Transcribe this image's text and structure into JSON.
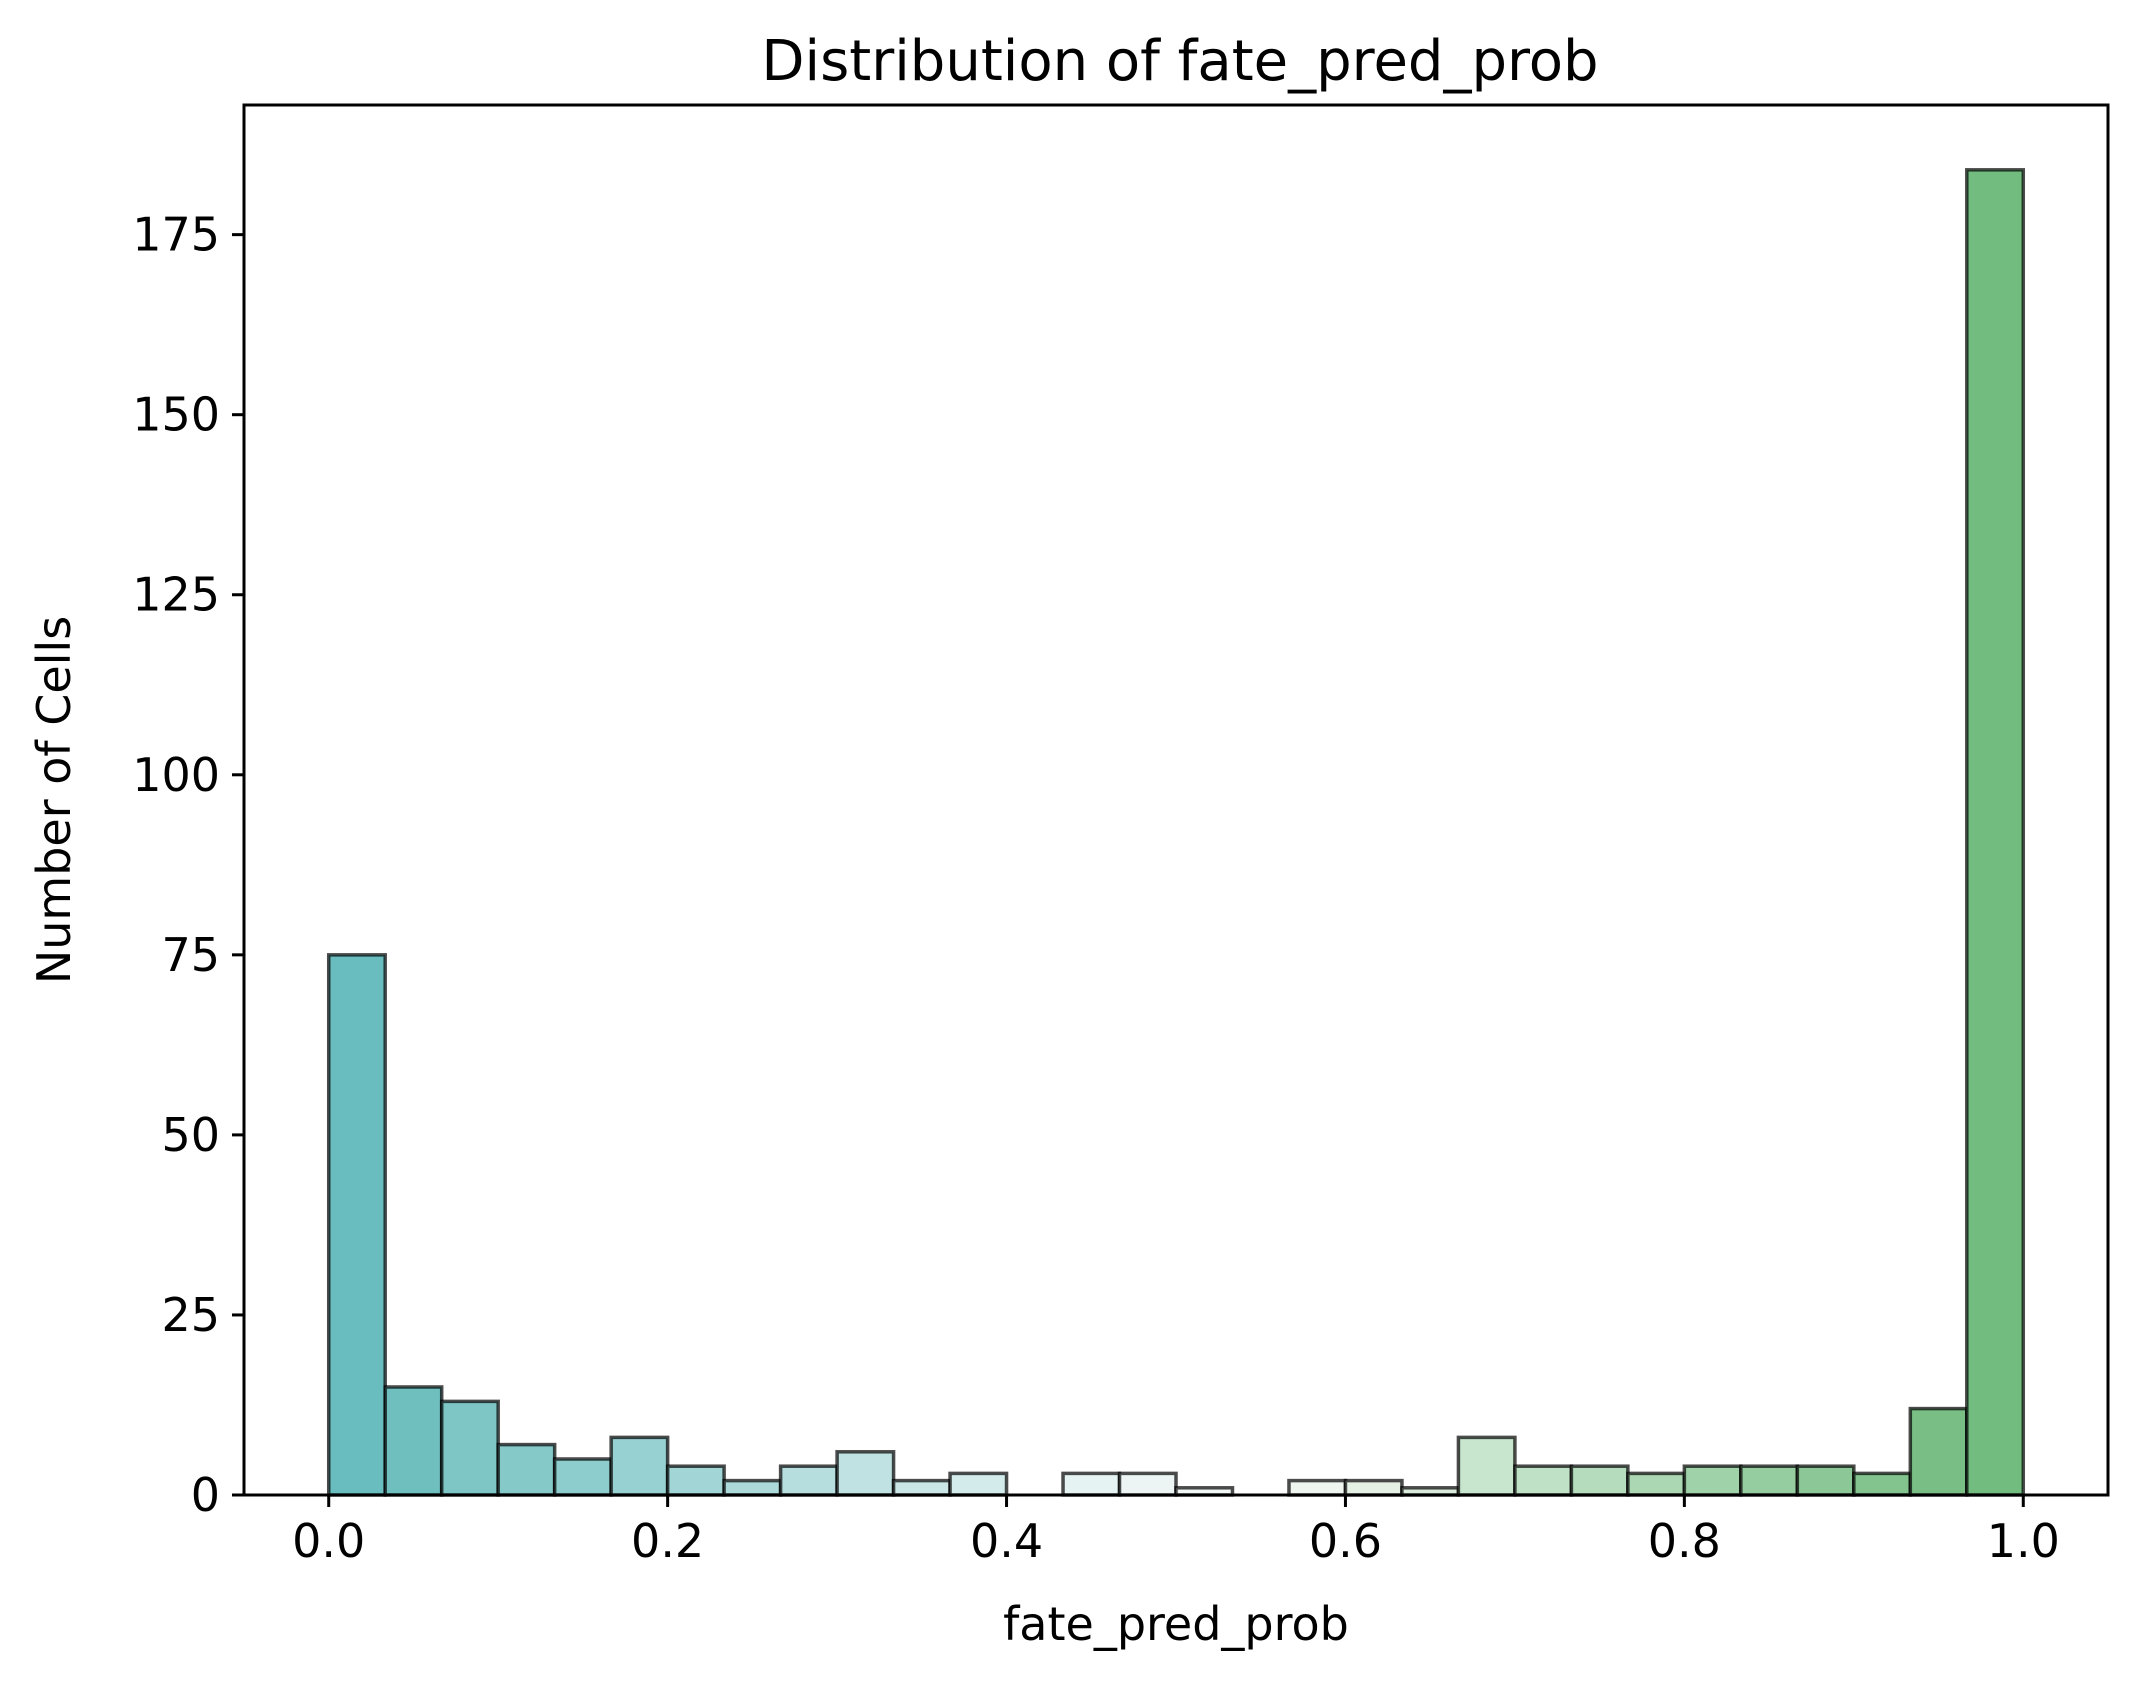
{
  "chart_data": {
    "type": "bar",
    "title": "Distribution of fate_pred_prob",
    "xlabel": "fate_pred_prob",
    "ylabel": "Number of Cells",
    "xlim": [
      -0.05,
      1.05
    ],
    "ylim": [
      0,
      193
    ],
    "xticks": [
      0.0,
      0.2,
      0.4,
      0.6,
      0.8,
      1.0
    ],
    "xtick_labels": [
      "0.0",
      "0.2",
      "0.4",
      "0.6",
      "0.8",
      "1.0"
    ],
    "yticks": [
      0,
      25,
      50,
      75,
      100,
      125,
      150,
      175
    ],
    "ytick_labels": [
      "0",
      "25",
      "50",
      "75",
      "100",
      "125",
      "150",
      "175"
    ],
    "bin_range": [
      0.0,
      1.0
    ],
    "bins": 30,
    "values": [
      75,
      15,
      13,
      7,
      5,
      8,
      4,
      2,
      4,
      6,
      2,
      3,
      0,
      3,
      3,
      1,
      0,
      2,
      2,
      1,
      8,
      4,
      4,
      3,
      4,
      4,
      4,
      3,
      12,
      184
    ],
    "colors": [
      "#6abdbe",
      "#6fbfbf",
      "#7ec5c5",
      "#86c9c9",
      "#8ecdcd",
      "#98d1d1",
      "#a2d5d5",
      "#acd9d9",
      "#b6dede",
      "#c0e2e2",
      "#cae6e6",
      "#d4ebeb",
      "#dff0f0",
      "#e6f3f3",
      "#ecf5f4",
      "#f2f8f6",
      "#f5f8f5",
      "#eff5ef",
      "#e6f1e6",
      "#dcecdc",
      "#c8e6ce",
      "#bfe1c5",
      "#b5dcbc",
      "#abd7b3",
      "#a0d2a9",
      "#96cda0",
      "#8cc897",
      "#82c38e",
      "#79be85",
      "#72bc7f"
    ],
    "grid": false,
    "legend": "none"
  }
}
